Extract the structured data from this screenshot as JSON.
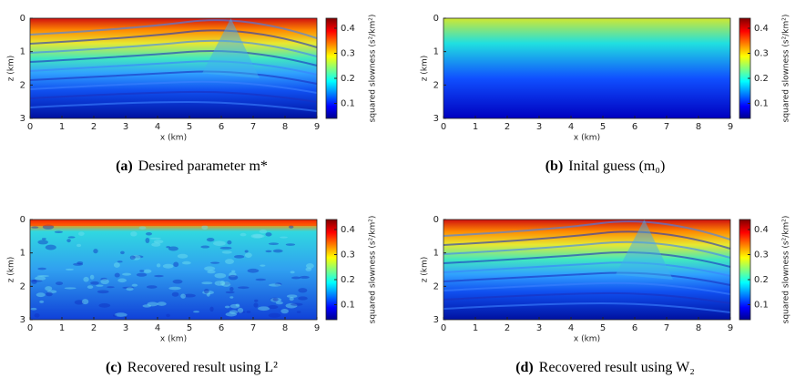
{
  "figure": {
    "panels": [
      {
        "label": "(a)",
        "caption": "Desired parameter m*",
        "xlabel": "x (km)",
        "ylabel": "z (km)",
        "colorbar_label": "squared slowness (s²/km²)",
        "xlim": [
          0,
          9
        ],
        "ylim": [
          0,
          3
        ],
        "xticks": [
          0,
          1,
          2,
          3,
          4,
          5,
          6,
          7,
          8,
          9
        ],
        "yticks": [
          0,
          1,
          2,
          3
        ],
        "clim": [
          0.04,
          0.44
        ],
        "cticks": [
          0.1,
          0.2,
          0.3,
          0.4
        ]
      },
      {
        "label": "(b)",
        "caption": "Inital guess (m₀)",
        "xlabel": "x (km)",
        "ylabel": "z (km)",
        "colorbar_label": "squared slowness (s²/km²)",
        "xlim": [
          0,
          9
        ],
        "ylim": [
          0,
          3
        ],
        "xticks": [
          0,
          1,
          2,
          3,
          4,
          5,
          6,
          7,
          8,
          9
        ],
        "yticks": [
          0,
          1,
          2,
          3
        ],
        "clim": [
          0.04,
          0.44
        ],
        "cticks": [
          0.1,
          0.2,
          0.3,
          0.4
        ]
      },
      {
        "label": "(c)",
        "caption": "Recovered result using L²",
        "xlabel": "x (km)",
        "ylabel": "z (km)",
        "colorbar_label": "squared slowness (s²/km²)",
        "xlim": [
          0,
          9
        ],
        "ylim": [
          0,
          3
        ],
        "xticks": [
          0,
          1,
          2,
          3,
          4,
          5,
          6,
          7,
          8,
          9
        ],
        "yticks": [
          0,
          1,
          2,
          3
        ],
        "clim": [
          0.04,
          0.44
        ],
        "cticks": [
          0.1,
          0.2,
          0.3,
          0.4
        ]
      },
      {
        "label": "(d)",
        "caption": "Recovered result using W₂",
        "xlabel": "x (km)",
        "ylabel": "z (km)",
        "colorbar_label": "squared slowness (s²/km²)",
        "xlim": [
          0,
          9
        ],
        "ylim": [
          0,
          3
        ],
        "xticks": [
          0,
          1,
          2,
          3,
          4,
          5,
          6,
          7,
          8,
          9
        ],
        "yticks": [
          0,
          1,
          2,
          3
        ],
        "clim": [
          0.04,
          0.44
        ],
        "cticks": [
          0.1,
          0.2,
          0.3,
          0.4
        ]
      }
    ]
  }
}
